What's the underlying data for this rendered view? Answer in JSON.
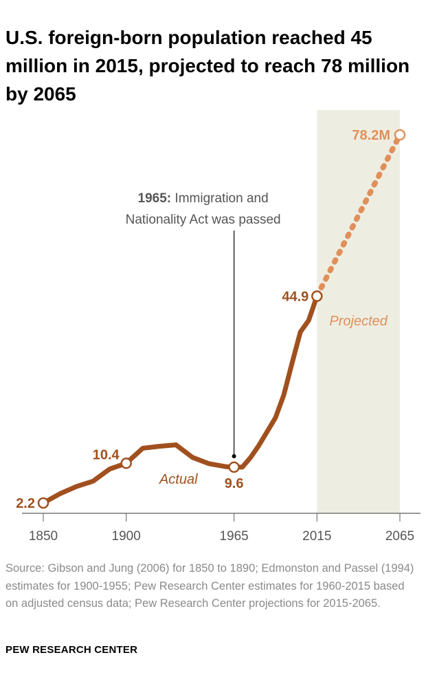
{
  "title": "U.S. foreign-born population reached 45 million in 2015, projected to reach 78 million by 2065",
  "colors": {
    "actual": "#A0501E",
    "projected": "#E08F5A",
    "projection_band": "#EEEDE1",
    "text": "#555555"
  },
  "chart_data": {
    "type": "line",
    "title": "U.S. foreign-born population reached 45 million in 2015, projected to reach 78 million by 2065",
    "xlabel": "",
    "ylabel": "",
    "xlim": [
      1850,
      2065
    ],
    "x_ticks": [
      "1850",
      "1900",
      "1965",
      "2015",
      "2065"
    ],
    "grid": false,
    "series": [
      {
        "name": "Actual",
        "style": "solid",
        "x": [
          1850,
          1860,
          1870,
          1880,
          1890,
          1900,
          1910,
          1920,
          1930,
          1940,
          1950,
          1960,
          1965,
          1970,
          1975,
          1980,
          1990,
          1995,
          2000,
          2005,
          2010,
          2015
        ],
        "y": [
          2.2,
          4.1,
          5.6,
          6.7,
          9.2,
          10.4,
          13.5,
          13.9,
          14.2,
          11.6,
          10.3,
          9.7,
          9.6,
          9.6,
          11.6,
          14.1,
          19.8,
          24.5,
          31.1,
          37.5,
          39.9,
          44.9
        ]
      },
      {
        "name": "Projected",
        "style": "dotted",
        "x": [
          2015,
          2065
        ],
        "y": [
          44.9,
          78.2
        ]
      }
    ],
    "data_labels": [
      {
        "x": 1850,
        "y": 2.2,
        "text": "2.2",
        "series": "Actual"
      },
      {
        "x": 1900,
        "y": 10.4,
        "text": "10.4",
        "series": "Actual"
      },
      {
        "x": 1965,
        "y": 9.6,
        "text": "9.6",
        "series": "Actual"
      },
      {
        "x": 2015,
        "y": 44.9,
        "text": "44.9",
        "series": "Actual"
      },
      {
        "x": 2065,
        "y": 78.2,
        "text": "78.2M",
        "series": "Projected"
      }
    ],
    "shaded_region": {
      "x": [
        2015,
        2065
      ],
      "label": "Projected"
    },
    "annotation": {
      "x": 1965,
      "bold": "1965:",
      "line1": "Immigration and",
      "line2": "Nationality Act was passed"
    }
  },
  "source": "Source: Gibson and Jung (2006) for 1850 to 1890; Edmonston and Passel (1994) estimates for 1900-1955; Pew Research Center estimates for 1960-2015 based on adjusted census data; Pew Research Center projections for 2015-2065.",
  "brand": "PEW RESEARCH CENTER"
}
